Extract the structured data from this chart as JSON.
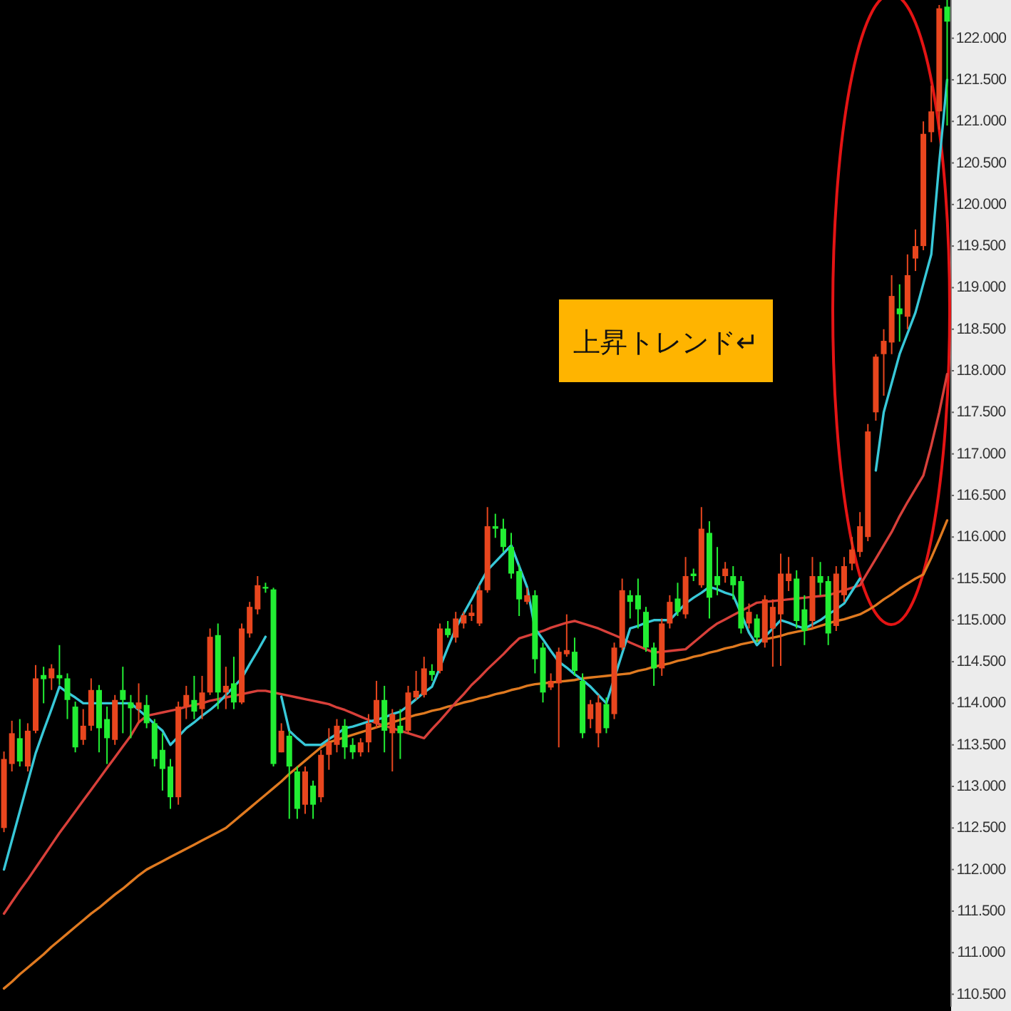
{
  "chart_data": {
    "type": "candlestick",
    "categories": [
      null,
      null,
      null,
      null,
      null,
      null,
      null,
      null,
      null,
      null,
      null,
      null,
      null,
      null,
      null,
      null,
      null,
      null,
      null,
      null,
      null,
      null,
      null,
      null,
      null,
      null,
      null,
      null,
      null,
      null,
      null,
      null,
      null,
      null,
      null,
      null,
      null,
      null,
      null,
      null,
      null,
      null,
      null,
      null,
      null,
      null,
      null,
      null,
      null,
      null,
      null,
      null,
      null,
      null,
      null,
      null,
      null,
      null,
      null,
      null,
      null,
      null,
      null,
      null,
      null,
      null,
      null,
      null,
      null,
      null,
      null,
      null,
      null,
      null,
      null,
      null,
      null,
      null,
      null,
      null,
      null,
      null,
      null,
      null,
      null,
      null,
      null,
      null,
      null,
      null,
      null,
      null,
      null,
      null,
      null,
      null,
      null,
      null,
      null,
      null,
      null,
      null,
      null,
      null,
      null,
      null,
      null,
      null,
      null,
      null,
      null,
      null,
      null,
      null,
      null,
      null,
      null,
      null,
      null,
      null
    ],
    "ohlc": [
      [
        112.5,
        113.42,
        112.45,
        113.33
      ],
      [
        113.27,
        113.79,
        113.18,
        113.64
      ],
      [
        113.58,
        113.81,
        113.24,
        113.3
      ],
      [
        113.24,
        113.76,
        113.18,
        113.67
      ],
      [
        113.67,
        114.46,
        113.64,
        114.3
      ],
      [
        114.34,
        114.44,
        114.0,
        114.29
      ],
      [
        114.3,
        114.47,
        114.16,
        114.42
      ],
      [
        114.34,
        114.7,
        114.22,
        114.3
      ],
      [
        114.3,
        114.36,
        113.81,
        114.04
      ],
      [
        113.96,
        114.02,
        113.41,
        113.47
      ],
      [
        113.56,
        113.93,
        113.5,
        113.73
      ],
      [
        113.73,
        114.3,
        113.67,
        114.16
      ],
      [
        114.16,
        114.22,
        113.41,
        113.7
      ],
      [
        113.81,
        113.96,
        113.27,
        113.58
      ],
      [
        113.56,
        114.1,
        113.5,
        114.04
      ],
      [
        114.16,
        114.44,
        113.64,
        114.04
      ],
      [
        114.01,
        114.1,
        113.58,
        113.94
      ],
      [
        113.93,
        114.24,
        113.76,
        114.01
      ],
      [
        113.98,
        114.1,
        113.7,
        113.76
      ],
      [
        113.76,
        113.81,
        113.24,
        113.33
      ],
      [
        113.44,
        113.64,
        112.95,
        113.21
      ],
      [
        113.24,
        113.33,
        112.73,
        112.87
      ],
      [
        112.87,
        114.02,
        112.78,
        113.96
      ],
      [
        113.96,
        114.21,
        113.81,
        114.1
      ],
      [
        114.04,
        114.33,
        113.81,
        113.9
      ],
      [
        113.93,
        114.33,
        113.81,
        114.13
      ],
      [
        114.13,
        114.9,
        114.1,
        114.8
      ],
      [
        114.82,
        114.96,
        113.93,
        114.13
      ],
      [
        114.13,
        114.44,
        113.93,
        114.21
      ],
      [
        114.24,
        114.56,
        113.93,
        114.01
      ],
      [
        114.01,
        114.96,
        113.99,
        114.9
      ],
      [
        114.84,
        115.22,
        114.79,
        115.16
      ],
      [
        115.13,
        115.53,
        115.07,
        115.42
      ],
      [
        115.4,
        115.45,
        115.33,
        115.38
      ],
      [
        115.37,
        115.39,
        113.24,
        113.27
      ],
      [
        113.41,
        113.76,
        113.41,
        113.67
      ],
      [
        113.61,
        113.67,
        112.61,
        113.24
      ],
      [
        113.18,
        113.24,
        112.61,
        112.73
      ],
      [
        112.78,
        113.24,
        112.67,
        113.18
      ],
      [
        113.01,
        113.07,
        112.61,
        112.78
      ],
      [
        112.87,
        113.44,
        112.81,
        113.38
      ],
      [
        113.38,
        113.7,
        113.2,
        113.53
      ],
      [
        113.5,
        113.81,
        113.41,
        113.73
      ],
      [
        113.73,
        113.81,
        113.33,
        113.47
      ],
      [
        113.5,
        113.58,
        113.33,
        113.41
      ],
      [
        113.41,
        113.58,
        113.36,
        113.53
      ],
      [
        113.53,
        113.87,
        113.41,
        113.76
      ],
      [
        113.76,
        114.27,
        113.7,
        114.04
      ],
      [
        114.04,
        114.21,
        113.41,
        113.67
      ],
      [
        113.64,
        113.93,
        113.18,
        113.87
      ],
      [
        113.73,
        113.93,
        113.33,
        113.64
      ],
      [
        113.67,
        114.21,
        113.64,
        114.13
      ],
      [
        114.07,
        114.39,
        114.04,
        114.15
      ],
      [
        114.1,
        114.56,
        114.07,
        114.42
      ],
      [
        114.39,
        114.47,
        114.27,
        114.34
      ],
      [
        114.39,
        114.96,
        114.36,
        114.9
      ],
      [
        114.9,
        114.99,
        114.79,
        114.82
      ],
      [
        114.79,
        115.1,
        114.73,
        115.02
      ],
      [
        114.96,
        115.1,
        114.9,
        115.06
      ],
      [
        115.05,
        115.19,
        114.99,
        115.09
      ],
      [
        114.96,
        115.42,
        114.93,
        115.36
      ],
      [
        115.36,
        116.36,
        115.33,
        116.13
      ],
      [
        116.13,
        116.28,
        115.99,
        116.1
      ],
      [
        116.1,
        116.22,
        115.82,
        115.88
      ],
      [
        115.88,
        116.05,
        115.5,
        115.56
      ],
      [
        115.59,
        115.67,
        115.05,
        115.25
      ],
      [
        115.22,
        115.39,
        115.19,
        115.3
      ],
      [
        115.3,
        115.36,
        114.36,
        114.53
      ],
      [
        114.67,
        114.73,
        114.01,
        114.13
      ],
      [
        114.19,
        114.36,
        114.16,
        114.27
      ],
      [
        114.24,
        114.67,
        113.47,
        114.62
      ],
      [
        114.59,
        115.07,
        114.56,
        114.64
      ],
      [
        114.62,
        114.79,
        114.33,
        114.39
      ],
      [
        114.27,
        114.36,
        113.58,
        113.64
      ],
      [
        113.81,
        114.04,
        113.7,
        113.99
      ],
      [
        113.64,
        114.1,
        113.47,
        114.01
      ],
      [
        113.99,
        114.07,
        113.64,
        113.7
      ],
      [
        113.87,
        114.73,
        113.81,
        114.67
      ],
      [
        114.67,
        115.5,
        114.64,
        115.36
      ],
      [
        115.3,
        115.36,
        115.02,
        115.22
      ],
      [
        115.3,
        115.5,
        114.9,
        115.13
      ],
      [
        115.1,
        115.16,
        114.62,
        114.67
      ],
      [
        114.67,
        114.73,
        114.21,
        114.42
      ],
      [
        114.42,
        115.02,
        114.33,
        114.96
      ],
      [
        114.96,
        115.3,
        114.9,
        115.22
      ],
      [
        115.26,
        115.45,
        115.05,
        115.1
      ],
      [
        115.07,
        115.76,
        115.02,
        115.53
      ],
      [
        115.56,
        115.62,
        115.47,
        115.53
      ],
      [
        115.42,
        116.36,
        115.39,
        116.1
      ],
      [
        116.05,
        116.19,
        115.02,
        115.27
      ],
      [
        115.53,
        115.88,
        115.3,
        115.42
      ],
      [
        115.53,
        115.7,
        115.45,
        115.62
      ],
      [
        115.53,
        115.65,
        115.25,
        115.42
      ],
      [
        115.47,
        115.53,
        114.84,
        114.9
      ],
      [
        114.96,
        115.2,
        114.9,
        115.1
      ],
      [
        115.02,
        115.07,
        114.73,
        114.79
      ],
      [
        114.73,
        115.3,
        114.67,
        115.25
      ],
      [
        114.9,
        115.25,
        114.44,
        115.16
      ],
      [
        115.07,
        115.8,
        114.45,
        115.56
      ],
      [
        115.47,
        115.76,
        115.35,
        115.56
      ],
      [
        115.5,
        115.6,
        114.9,
        114.99
      ],
      [
        115.13,
        115.3,
        114.7,
        114.87
      ],
      [
        114.99,
        115.76,
        114.9,
        115.53
      ],
      [
        115.53,
        115.7,
        115.3,
        115.45
      ],
      [
        115.47,
        115.53,
        114.7,
        114.84
      ],
      [
        114.93,
        115.65,
        114.87,
        115.56
      ],
      [
        115.3,
        115.76,
        115.22,
        115.65
      ],
      [
        115.68,
        116.0,
        115.6,
        115.85
      ],
      [
        115.82,
        116.3,
        115.76,
        116.13
      ],
      [
        116.0,
        117.36,
        115.95,
        117.27
      ],
      [
        117.5,
        118.2,
        117.4,
        118.17
      ],
      [
        118.2,
        118.5,
        117.7,
        118.36
      ],
      [
        118.34,
        119.15,
        118.2,
        118.9
      ],
      [
        118.75,
        119.04,
        118.35,
        118.68
      ],
      [
        118.65,
        119.4,
        118.5,
        119.15
      ],
      [
        119.35,
        119.7,
        119.2,
        119.5
      ],
      [
        119.5,
        121.0,
        119.45,
        120.85
      ],
      [
        120.87,
        121.43,
        120.75,
        121.12
      ],
      [
        121.12,
        122.4,
        120.9,
        122.36
      ],
      [
        122.38,
        122.46,
        120.95,
        122.2
      ]
    ],
    "colors": [
      "#e8461e",
      "#e8461e",
      "#22ee33",
      "#e8461e",
      "#e8461e",
      "#22ee33",
      "#e8461e",
      "#22ee33",
      "#22ee33",
      "#22ee33",
      "#e8461e",
      "#e8461e",
      "#22ee33",
      "#22ee33",
      "#e8461e",
      "#22ee33",
      "#22ee33",
      "#e8461e",
      "#22ee33",
      "#22ee33",
      "#22ee33",
      "#22ee33",
      "#e8461e",
      "#e8461e",
      "#22ee33",
      "#e8461e",
      "#e8461e",
      "#22ee33",
      "#e8461e",
      "#22ee33",
      "#e8461e",
      "#e8461e",
      "#e8461e",
      "#22ee33",
      "#22ee33",
      "#e8461e",
      "#22ee33",
      "#22ee33",
      "#e8461e",
      "#22ee33",
      "#e8461e",
      "#e8461e",
      "#e8461e",
      "#22ee33",
      "#22ee33",
      "#e8461e",
      "#e8461e",
      "#e8461e",
      "#22ee33",
      "#e8461e",
      "#22ee33",
      "#e8461e",
      "#e8461e",
      "#e8461e",
      "#22ee33",
      "#e8461e",
      "#22ee33",
      "#e8461e",
      "#e8461e",
      "#e8461e",
      "#e8461e",
      "#e8461e",
      "#22ee33",
      "#22ee33",
      "#22ee33",
      "#22ee33",
      "#e8461e",
      "#22ee33",
      "#22ee33",
      "#e8461e",
      "#e8461e",
      "#e8461e",
      "#22ee33",
      "#22ee33",
      "#e8461e",
      "#e8461e",
      "#22ee33",
      "#e8461e",
      "#e8461e",
      "#22ee33",
      "#22ee33",
      "#22ee33",
      "#22ee33",
      "#e8461e",
      "#e8461e",
      "#22ee33",
      "#e8461e",
      "#22ee33",
      "#e8461e",
      "#22ee33",
      "#22ee33",
      "#e8461e",
      "#22ee33",
      "#22ee33",
      "#e8461e",
      "#22ee33",
      "#e8461e",
      "#e8461e",
      "#e8461e",
      "#e8461e",
      "#22ee33",
      "#22ee33",
      "#e8461e",
      "#22ee33",
      "#22ee33",
      "#e8461e",
      "#e8461e",
      "#e8461e",
      "#e8461e",
      "#e8461e",
      "#e8461e",
      "#e8461e",
      "#e8461e",
      "#22ee33",
      "#e8461e",
      "#e8461e",
      "#e8461e",
      "#e8461e",
      "#e8461e",
      "#22ee33"
    ],
    "series": [
      {
        "type": "line",
        "color": "#e07a20",
        "values": [
          110.57,
          110.65,
          110.74,
          110.82,
          110.9,
          110.98,
          111.07,
          111.15,
          111.23,
          111.31,
          111.39,
          111.47,
          111.54,
          111.62,
          111.7,
          111.77,
          111.85,
          111.93,
          112.0,
          112.05,
          112.1,
          112.15,
          112.2,
          112.25,
          112.3,
          112.35,
          112.4,
          112.45,
          112.5,
          112.58,
          112.66,
          112.74,
          112.82,
          112.9,
          112.98,
          113.06,
          113.15,
          113.23,
          113.31,
          113.39,
          113.47,
          113.53,
          113.56,
          113.59,
          113.62,
          113.65,
          113.68,
          113.71,
          113.74,
          113.77,
          113.8,
          113.83,
          113.86,
          113.88,
          113.91,
          113.93,
          113.96,
          113.98,
          114.01,
          114.03,
          114.06,
          114.08,
          114.11,
          114.13,
          114.16,
          114.18,
          114.21,
          114.23,
          114.24,
          114.25,
          114.26,
          114.27,
          114.28,
          114.3,
          114.31,
          114.32,
          114.33,
          114.34,
          114.35,
          114.36,
          114.39,
          114.41,
          114.44,
          114.46,
          114.48,
          114.51,
          114.53,
          114.56,
          114.58,
          114.61,
          114.63,
          114.66,
          114.68,
          114.71,
          114.73,
          114.75,
          114.77,
          114.79,
          114.81,
          114.84,
          114.86,
          114.88,
          114.9,
          114.93,
          114.96,
          114.99,
          115.01,
          115.04,
          115.07,
          115.12,
          115.18,
          115.25,
          115.31,
          115.38,
          115.44,
          115.5,
          115.55,
          115.75,
          115.97,
          116.2
        ]
      },
      {
        "type": "line",
        "color": "#d8403a",
        "values": [
          111.47,
          111.61,
          111.75,
          111.88,
          112.02,
          112.16,
          112.3,
          112.44,
          112.57,
          112.7,
          112.83,
          112.96,
          113.09,
          113.22,
          113.35,
          113.48,
          113.61,
          113.77,
          113.85,
          113.87,
          113.89,
          113.91,
          113.93,
          113.96,
          113.98,
          114.0,
          114.03,
          114.05,
          114.07,
          114.09,
          114.11,
          114.13,
          114.15,
          114.15,
          114.13,
          114.11,
          114.09,
          114.07,
          114.05,
          114.03,
          114.01,
          113.99,
          113.95,
          113.92,
          113.88,
          113.84,
          113.8,
          113.76,
          113.73,
          113.7,
          113.67,
          113.64,
          113.61,
          113.58,
          113.69,
          113.79,
          113.9,
          114.01,
          114.11,
          114.22,
          114.31,
          114.41,
          114.5,
          114.59,
          114.69,
          114.78,
          114.81,
          114.84,
          114.87,
          114.91,
          114.94,
          114.97,
          114.99,
          114.96,
          114.93,
          114.9,
          114.86,
          114.82,
          114.78,
          114.73,
          114.69,
          114.65,
          114.61,
          114.62,
          114.63,
          114.64,
          114.65,
          114.73,
          114.81,
          114.89,
          114.96,
          115.01,
          115.06,
          115.11,
          115.16,
          115.21,
          115.22,
          115.23,
          115.24,
          115.25,
          115.26,
          115.27,
          115.28,
          115.29,
          115.3,
          115.33,
          115.36,
          115.39,
          115.42,
          115.58,
          115.74,
          115.9,
          116.06,
          116.25,
          116.42,
          116.58,
          116.74,
          117.1,
          117.5,
          117.96
        ]
      },
      {
        "type": "line",
        "color": "#38c8d8",
        "values": [
          112.0,
          112.35,
          112.7,
          113.05,
          113.4,
          113.67,
          113.93,
          114.2,
          114.13,
          114.07,
          114.0,
          114.0,
          114.0,
          114.0,
          114.0,
          114.0,
          114.0,
          113.92,
          113.84,
          113.75,
          113.67,
          113.5,
          113.6,
          113.7,
          113.77,
          113.85,
          113.92,
          114.0,
          114.1,
          114.2,
          114.3,
          114.47,
          114.63,
          114.8,
          null,
          114.08,
          113.67,
          113.58,
          113.5,
          113.5,
          113.5,
          113.57,
          113.63,
          113.7,
          113.72,
          113.75,
          113.78,
          113.8,
          113.83,
          113.87,
          113.9,
          113.97,
          114.05,
          114.13,
          114.2,
          114.43,
          114.67,
          114.9,
          115.08,
          115.25,
          115.43,
          115.6,
          115.7,
          115.8,
          115.9,
          115.65,
          115.4,
          114.9,
          114.77,
          114.63,
          114.5,
          114.43,
          114.35,
          114.28,
          114.2,
          114.1,
          114.0,
          114.3,
          114.6,
          114.9,
          114.93,
          114.97,
          115.0,
          115.0,
          115.0,
          115.1,
          115.2,
          115.27,
          115.33,
          115.4,
          115.37,
          115.33,
          115.3,
          115.08,
          114.85,
          114.7,
          114.8,
          114.9,
          115.0,
          114.97,
          114.93,
          114.9,
          114.95,
          115.0,
          115.07,
          115.13,
          115.2,
          115.35,
          115.5,
          null,
          116.8,
          117.5,
          117.85,
          118.2,
          118.45,
          118.7,
          119.05,
          119.4,
          120.5,
          121.5
        ]
      }
    ],
    "ylim": [
      110.35,
      122.46
    ],
    "yticks": [
      {
        "value": 110.5,
        "label": "110.500"
      },
      {
        "value": 111,
        "label": "111.000"
      },
      {
        "value": 111.5,
        "label": "111.500"
      },
      {
        "value": 112,
        "label": "112.000"
      },
      {
        "value": 112.5,
        "label": "112.500"
      },
      {
        "value": 113,
        "label": "113.000"
      },
      {
        "value": 113.5,
        "label": "113.500"
      },
      {
        "value": 114,
        "label": "114.000"
      },
      {
        "value": 114.5,
        "label": "114.500"
      },
      {
        "value": 115,
        "label": "115.000"
      },
      {
        "value": 115.5,
        "label": "115.500"
      },
      {
        "value": 116,
        "label": "116.000"
      },
      {
        "value": 116.5,
        "label": "116.500"
      },
      {
        "value": 117,
        "label": "117.000"
      },
      {
        "value": 117.5,
        "label": "117.500"
      },
      {
        "value": 118,
        "label": "118.000"
      },
      {
        "value": 118.5,
        "label": "118.500"
      },
      {
        "value": 119,
        "label": "119.000"
      },
      {
        "value": 119.5,
        "label": "119.500"
      },
      {
        "value": 120,
        "label": "120.000"
      },
      {
        "value": 120.5,
        "label": "120.500"
      },
      {
        "value": 121,
        "label": "121.000"
      },
      {
        "value": 121.5,
        "label": "121.500"
      },
      {
        "value": 122,
        "label": "122.000"
      }
    ],
    "annotations": [
      "上昇トレンド↵"
    ]
  }
}
